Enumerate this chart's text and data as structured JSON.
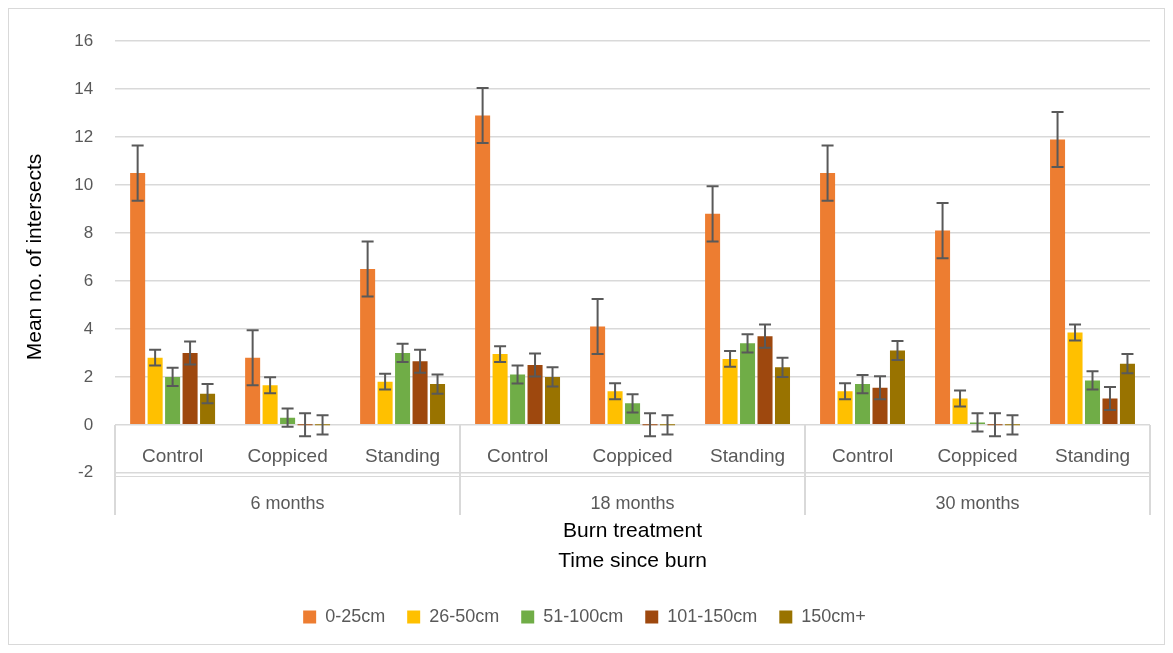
{
  "chart_data": {
    "type": "bar",
    "ylabel": "Mean no. of intersects",
    "xlabel": "Burn treatment",
    "categories": [
      "Control",
      "Coppiced",
      "Standing",
      "Control",
      "Coppiced",
      "Standing",
      "Control",
      "Coppiced",
      "Standing"
    ],
    "annotations": [
      "6 months",
      "18 months",
      "30 months",
      "Time since burn"
    ],
    "ylim": [
      -2,
      16
    ],
    "yticks": [
      -2,
      0,
      2,
      4,
      6,
      8,
      10,
      12,
      14,
      16
    ],
    "grid": "y",
    "legend": "bottom",
    "series": [
      {
        "name": "0-25cm",
        "color": "#ed7d31",
        "values": [
          10.5,
          2.8,
          6.5,
          12.9,
          4.1,
          8.8,
          10.5,
          8.1,
          11.9
        ],
        "errors": [
          1.15,
          1.15,
          1.15,
          1.15,
          1.15,
          1.15,
          1.15,
          1.15,
          1.15
        ]
      },
      {
        "name": "26-50cm",
        "color": "#ffc000",
        "values": [
          2.8,
          1.65,
          1.8,
          2.95,
          1.4,
          2.75,
          1.4,
          1.1,
          3.85
        ],
        "errors": [
          0.33,
          0.33,
          0.33,
          0.33,
          0.33,
          0.33,
          0.33,
          0.33,
          0.33
        ]
      },
      {
        "name": "51-100cm",
        "color": "#70ad47",
        "values": [
          2,
          0.3,
          3,
          2.1,
          0.9,
          3.4,
          1.7,
          0.1,
          1.85
        ],
        "errors": [
          0.38,
          0.38,
          0.38,
          0.38,
          0.38,
          0.38,
          0.38,
          0.38,
          0.38
        ]
      },
      {
        "name": "101-150cm",
        "color": "#9e480e",
        "values": [
          3,
          0,
          2.65,
          2.5,
          0,
          3.7,
          1.55,
          0,
          1.1
        ],
        "errors": [
          0.48,
          0.48,
          0.48,
          0.48,
          0.48,
          0.48,
          0.48,
          0.48,
          0.48
        ]
      },
      {
        "name": "150cm+",
        "color": "#997300",
        "values": [
          1.3,
          0,
          1.7,
          2,
          0,
          2.4,
          3.1,
          0,
          2.55
        ],
        "errors": [
          0.4,
          0.4,
          0.4,
          0.4,
          0.4,
          0.4,
          0.4,
          0.4,
          0.4
        ]
      }
    ]
  }
}
